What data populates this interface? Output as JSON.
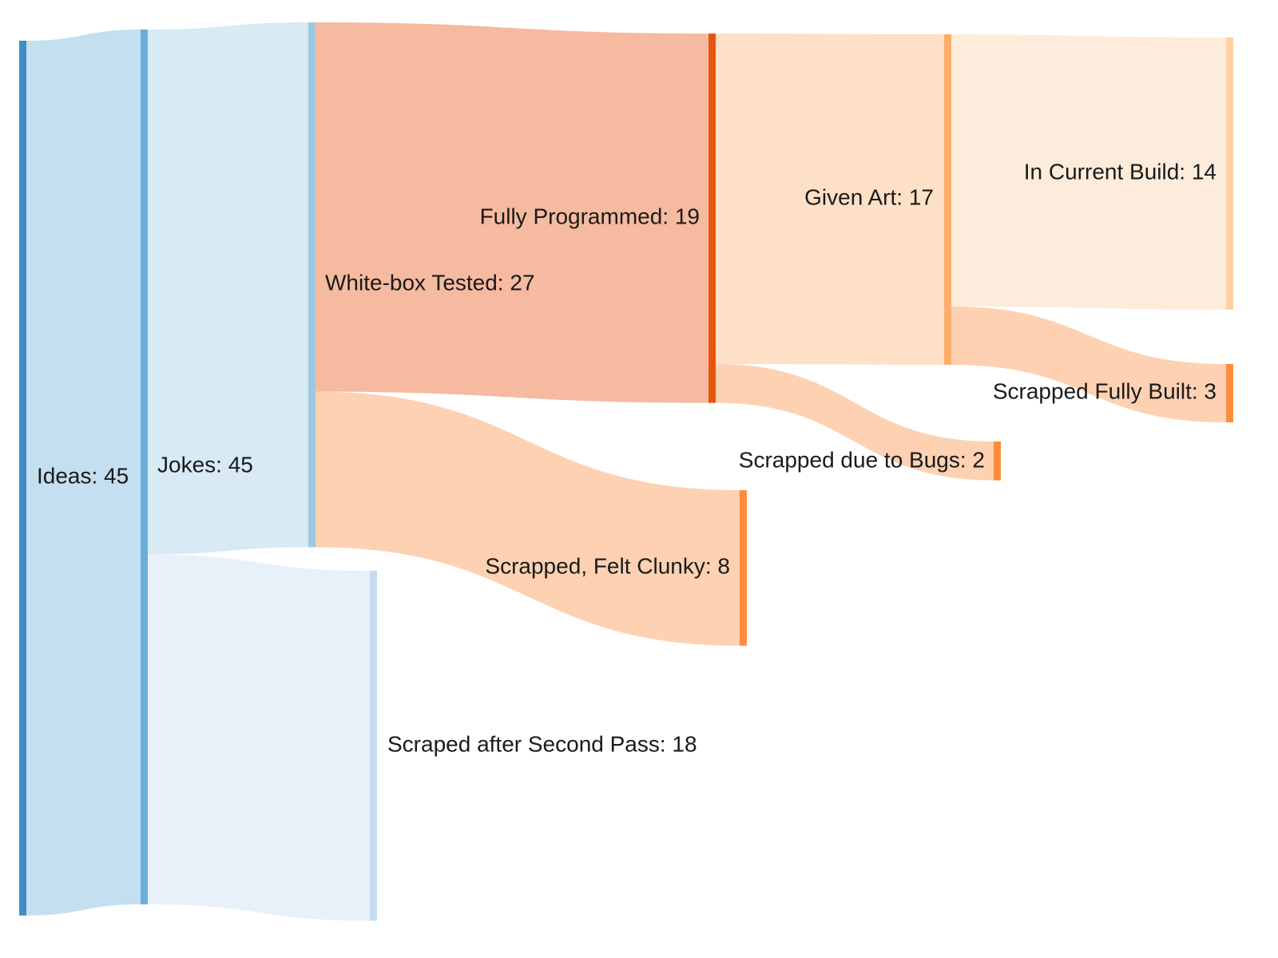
{
  "chart_data": {
    "type": "sankey",
    "nodes": [
      {
        "id": "ideas",
        "name": "Ideas",
        "value": 45,
        "color": "#3e8ec4"
      },
      {
        "id": "jokes",
        "name": "Jokes",
        "value": 45,
        "color": "#6aaed6"
      },
      {
        "id": "whitebox",
        "name": "White-box Tested",
        "value": 27,
        "color": "#9ecae1"
      },
      {
        "id": "scraped2",
        "name": "Scraped after Second Pass",
        "value": 18,
        "color": "#c6dbef"
      },
      {
        "id": "programmed",
        "name": "Fully Programmed",
        "value": 19,
        "color": "#e6550d"
      },
      {
        "id": "clunky",
        "name": "Scrapped, Felt Clunky",
        "value": 8,
        "color": "#fd8d3c"
      },
      {
        "id": "art",
        "name": "Given Art",
        "value": 17,
        "color": "#fdae6b"
      },
      {
        "id": "bugs",
        "name": "Scrapped due to Bugs",
        "value": 2,
        "color": "#fd8d3c"
      },
      {
        "id": "current",
        "name": "In Current Build",
        "value": 14,
        "color": "#fdd0a2"
      },
      {
        "id": "fullybuilt",
        "name": "Scrapped Fully Built",
        "value": 3,
        "color": "#fd8d3c"
      }
    ],
    "links": [
      {
        "source": "ideas",
        "target": "jokes",
        "value": 45,
        "color": "#c3dff0"
      },
      {
        "source": "jokes",
        "target": "whitebox",
        "value": 27,
        "color": "#d8eaf4"
      },
      {
        "source": "jokes",
        "target": "scraped2",
        "value": 18,
        "color": "#e8f0f9"
      },
      {
        "source": "whitebox",
        "target": "programmed",
        "value": 19,
        "color": "#f5baa0"
      },
      {
        "source": "whitebox",
        "target": "clunky",
        "value": 8,
        "color": "#fdd1b2"
      },
      {
        "source": "programmed",
        "target": "art",
        "value": 17,
        "color": "#fde0c5"
      },
      {
        "source": "programmed",
        "target": "bugs",
        "value": 2,
        "color": "#fdd1b2"
      },
      {
        "source": "art",
        "target": "current",
        "value": 14,
        "color": "#fdecdb"
      },
      {
        "source": "art",
        "target": "fullybuilt",
        "value": 3,
        "color": "#fdd1b2"
      }
    ]
  }
}
